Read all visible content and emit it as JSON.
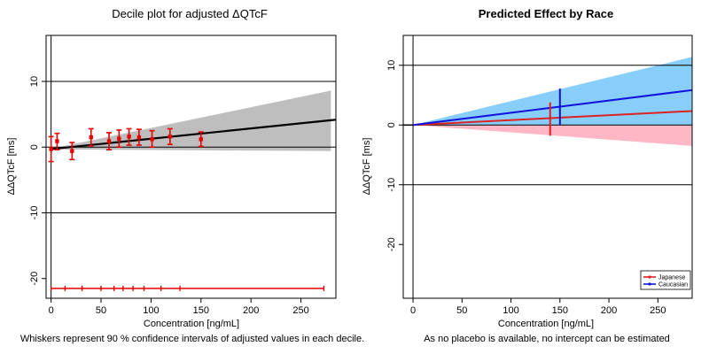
{
  "chart_data": [
    {
      "type": "scatter",
      "title": "Decile plot for adjusted ΔQTcF",
      "xlabel": "Concentration [ng/mL]",
      "ylabel": "ΔΔQTcF [ms]",
      "note": "Whiskers represent 90 % confidence intervals of adjusted values in each decile.",
      "xlim": [
        -5,
        285
      ],
      "ylim": [
        -23,
        17
      ],
      "xticks": [
        0,
        50,
        100,
        150,
        200,
        250
      ],
      "yticks": [
        -20,
        -10,
        0,
        10
      ],
      "hlines": [
        -10,
        0,
        10
      ],
      "vline": 0,
      "points": [
        {
          "x": 0,
          "y": -0.3,
          "lo": -2.2,
          "hi": 1.6
        },
        {
          "x": 6,
          "y": 0.9,
          "lo": -0.4,
          "hi": 2.1
        },
        {
          "x": 21,
          "y": -0.6,
          "lo": -1.9,
          "hi": 0.7
        },
        {
          "x": 40,
          "y": 1.5,
          "lo": 0.2,
          "hi": 2.8
        },
        {
          "x": 58,
          "y": 0.9,
          "lo": -0.4,
          "hi": 2.2
        },
        {
          "x": 68,
          "y": 1.3,
          "lo": 0.0,
          "hi": 2.6
        },
        {
          "x": 78,
          "y": 1.6,
          "lo": 0.3,
          "hi": 2.8
        },
        {
          "x": 88,
          "y": 1.5,
          "lo": 0.3,
          "hi": 2.7
        },
        {
          "x": 101,
          "y": 1.2,
          "lo": 0.0,
          "hi": 2.5
        },
        {
          "x": 119,
          "y": 1.6,
          "lo": 0.4,
          "hi": 2.8
        },
        {
          "x": 150,
          "y": 1.2,
          "lo": 0.1,
          "hi": 2.3
        }
      ],
      "regression": {
        "intercept": -0.3,
        "slope": 0.0157
      },
      "ci_band": {
        "at_x280_lower": -0.6,
        "at_x280_upper": 8.6
      },
      "decile_bounds": {
        "y": -21.5,
        "x": [
          0,
          14,
          31,
          50,
          63,
          72,
          82,
          93,
          110,
          129,
          273
        ]
      },
      "colors": {
        "points": "#e60000",
        "line": "#000000",
        "band": "#bebebe"
      }
    },
    {
      "type": "line",
      "title": "Predicted Effect by Race",
      "xlabel": "Concentration [ng/mL]",
      "ylabel": "ΔΔQTcF [ms]",
      "note": "As no placebo is available, no intercept can be estimated",
      "xlim": [
        -10,
        285
      ],
      "ylim": [
        -29,
        15
      ],
      "xticks": [
        0,
        50,
        100,
        150,
        200,
        250
      ],
      "yticks": [
        -20,
        -10,
        0,
        10
      ],
      "hlines": [
        -10,
        0,
        10
      ],
      "vline": 0,
      "series": [
        {
          "name": "Japanese",
          "slope": 0.0082,
          "lower_at_285": -3.5,
          "upper_at_285": 8.0,
          "marker_x": 140,
          "marker_lo": -1.8,
          "marker_hi": 3.8,
          "color": "#dd2222",
          "band": "#ffb6c5"
        },
        {
          "name": "Caucasian",
          "slope": 0.0205,
          "lower_at_285": 0.0,
          "upper_at_285": 11.4,
          "marker_x": 150,
          "marker_lo": 0.0,
          "marker_hi": 6.1,
          "color": "#1111dd",
          "band": "#87cefa"
        }
      ],
      "legend_position": "bottom-right"
    }
  ]
}
